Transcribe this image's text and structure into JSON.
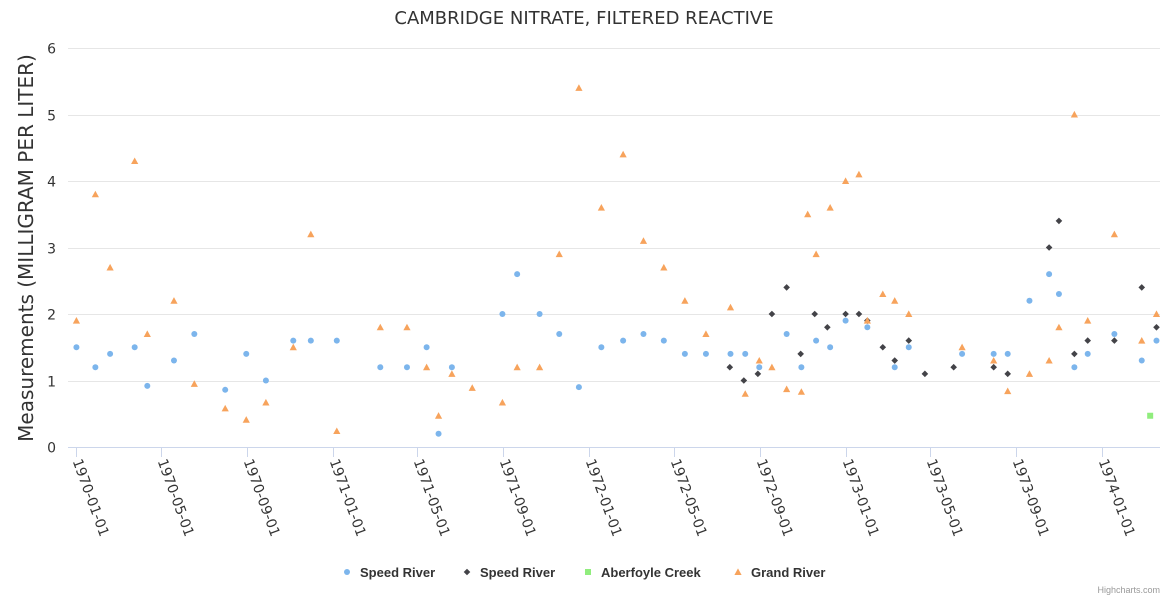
{
  "chart_data": {
    "type": "scatter",
    "title": "CAMBRIDGE NITRATE, FILTERED REACTIVE",
    "xlabel": "",
    "ylabel": "Measurements (MILLIGRAM PER LITER)",
    "ylim": [
      0,
      6
    ],
    "yticks": [
      "0",
      "1",
      "2",
      "3",
      "4",
      "5",
      "6"
    ],
    "xlim": [
      "1969-12-20",
      "1974-03-25"
    ],
    "xticks": [
      "1970-01-01",
      "1970-05-01",
      "1970-09-01",
      "1971-01-01",
      "1971-05-01",
      "1971-09-01",
      "1972-01-01",
      "1972-05-01",
      "1972-09-01",
      "1973-01-01",
      "1973-05-01",
      "1973-09-01",
      "1974-01-01"
    ],
    "grid": true,
    "legend_position": "bottom-center",
    "series": [
      {
        "name": "Speed River",
        "marker": "circle",
        "color": "#7cb5ec",
        "points": [
          [
            "1970-01-01",
            1.5
          ],
          [
            "1970-01-28",
            1.2
          ],
          [
            "1970-02-18",
            1.4
          ],
          [
            "1970-03-25",
            1.5
          ],
          [
            "1970-04-12",
            0.92
          ],
          [
            "1970-05-20",
            1.3
          ],
          [
            "1970-06-18",
            1.7
          ],
          [
            "1970-08-01",
            0.86
          ],
          [
            "1970-08-31",
            1.4
          ],
          [
            "1970-09-28",
            1.0
          ],
          [
            "1970-11-06",
            1.6
          ],
          [
            "1970-12-01",
            1.6
          ],
          [
            "1971-01-07",
            1.6
          ],
          [
            "1971-03-10",
            1.2
          ],
          [
            "1971-04-17",
            1.2
          ],
          [
            "1971-05-15",
            1.5
          ],
          [
            "1971-06-01",
            0.2
          ],
          [
            "1971-06-20",
            1.2
          ],
          [
            "1971-08-31",
            2.0
          ],
          [
            "1971-09-21",
            2.6
          ],
          [
            "1971-10-23",
            2.0
          ],
          [
            "1971-11-20",
            1.7
          ],
          [
            "1971-12-18",
            0.9
          ],
          [
            "1972-01-19",
            1.5
          ],
          [
            "1972-02-19",
            1.6
          ],
          [
            "1972-03-19",
            1.7
          ],
          [
            "1972-04-17",
            1.6
          ],
          [
            "1972-05-17",
            1.4
          ],
          [
            "1972-06-16",
            1.4
          ],
          [
            "1972-07-21",
            1.4
          ],
          [
            "1972-08-11",
            1.4
          ],
          [
            "1972-08-31",
            1.2
          ],
          [
            "1972-10-09",
            1.7
          ],
          [
            "1972-10-30",
            1.2
          ],
          [
            "1972-11-20",
            1.6
          ],
          [
            "1972-12-10",
            1.5
          ],
          [
            "1973-01-01",
            1.9
          ],
          [
            "1973-02-01",
            1.8
          ],
          [
            "1973-03-12",
            1.2
          ],
          [
            "1973-04-01",
            1.5
          ],
          [
            "1973-06-16",
            1.4
          ],
          [
            "1973-07-31",
            1.4
          ],
          [
            "1973-08-20",
            1.4
          ],
          [
            "1973-09-20",
            2.2
          ],
          [
            "1973-10-18",
            2.6
          ],
          [
            "1973-11-01",
            2.3
          ],
          [
            "1973-11-23",
            1.2
          ],
          [
            "1973-12-12",
            1.4
          ],
          [
            "1974-01-19",
            1.7
          ],
          [
            "1974-02-27",
            1.3
          ],
          [
            "1974-03-20",
            1.6
          ]
        ]
      },
      {
        "name": "Speed River",
        "marker": "diamond",
        "color": "#434348",
        "points": [
          [
            "1972-07-20",
            1.2
          ],
          [
            "1972-08-09",
            1.0
          ],
          [
            "1972-08-29",
            1.1
          ],
          [
            "1972-09-18",
            2.0
          ],
          [
            "1972-10-09",
            2.4
          ],
          [
            "1972-10-29",
            1.4
          ],
          [
            "1972-11-18",
            2.0
          ],
          [
            "1972-12-06",
            1.8
          ],
          [
            "1973-01-01",
            2.0
          ],
          [
            "1973-01-20",
            2.0
          ],
          [
            "1973-02-01",
            1.9
          ],
          [
            "1973-02-23",
            1.5
          ],
          [
            "1973-03-12",
            1.3
          ],
          [
            "1973-04-01",
            1.6
          ],
          [
            "1973-04-24",
            1.1
          ],
          [
            "1973-06-04",
            1.2
          ],
          [
            "1973-07-31",
            1.2
          ],
          [
            "1973-08-20",
            1.1
          ],
          [
            "1973-10-18",
            3.0
          ],
          [
            "1973-11-01",
            3.4
          ],
          [
            "1973-11-23",
            1.4
          ],
          [
            "1973-12-12",
            1.6
          ],
          [
            "1974-01-19",
            1.6
          ],
          [
            "1974-02-27",
            2.4
          ],
          [
            "1974-03-20",
            1.8
          ]
        ]
      },
      {
        "name": "Aberfoyle Creek",
        "marker": "square",
        "color": "#90ed7d",
        "points": [
          [
            "1974-03-11",
            0.47
          ]
        ]
      },
      {
        "name": "Grand River",
        "marker": "triangle",
        "color": "#f7a35c",
        "points": [
          [
            "1970-01-01",
            1.9
          ],
          [
            "1970-01-28",
            3.8
          ],
          [
            "1970-02-18",
            2.7
          ],
          [
            "1970-03-25",
            4.3
          ],
          [
            "1970-04-12",
            1.7
          ],
          [
            "1970-05-20",
            2.2
          ],
          [
            "1970-06-18",
            0.95
          ],
          [
            "1970-08-01",
            0.58
          ],
          [
            "1970-08-31",
            0.41
          ],
          [
            "1970-09-28",
            0.67
          ],
          [
            "1970-11-06",
            1.5
          ],
          [
            "1970-12-01",
            3.2
          ],
          [
            "1971-01-07",
            0.24
          ],
          [
            "1971-03-10",
            1.8
          ],
          [
            "1971-04-17",
            1.8
          ],
          [
            "1971-05-15",
            1.2
          ],
          [
            "1971-06-01",
            0.47
          ],
          [
            "1971-06-20",
            1.1
          ],
          [
            "1971-07-19",
            0.89
          ],
          [
            "1971-08-31",
            0.67
          ],
          [
            "1971-09-21",
            1.2
          ],
          [
            "1971-10-23",
            1.2
          ],
          [
            "1971-11-20",
            2.9
          ],
          [
            "1971-12-18",
            5.4
          ],
          [
            "1972-01-19",
            3.6
          ],
          [
            "1972-02-19",
            4.4
          ],
          [
            "1972-03-19",
            3.1
          ],
          [
            "1972-04-17",
            2.7
          ],
          [
            "1972-05-17",
            2.2
          ],
          [
            "1972-06-16",
            1.7
          ],
          [
            "1972-07-21",
            2.1
          ],
          [
            "1972-08-11",
            0.8
          ],
          [
            "1972-08-31",
            1.3
          ],
          [
            "1972-09-18",
            1.2
          ],
          [
            "1972-10-09",
            0.87
          ],
          [
            "1972-10-30",
            0.83
          ],
          [
            "1972-11-08",
            3.5
          ],
          [
            "1972-11-20",
            2.9
          ],
          [
            "1972-12-10",
            3.6
          ],
          [
            "1973-01-01",
            4.0
          ],
          [
            "1973-01-20",
            4.1
          ],
          [
            "1973-02-01",
            1.9
          ],
          [
            "1973-02-23",
            2.3
          ],
          [
            "1973-03-12",
            2.2
          ],
          [
            "1973-04-01",
            2.0
          ],
          [
            "1973-06-16",
            1.5
          ],
          [
            "1973-07-31",
            1.3
          ],
          [
            "1973-08-20",
            0.84
          ],
          [
            "1973-09-20",
            1.1
          ],
          [
            "1973-10-18",
            1.3
          ],
          [
            "1973-11-01",
            1.8
          ],
          [
            "1973-11-23",
            5.0
          ],
          [
            "1973-12-12",
            1.9
          ],
          [
            "1974-01-19",
            3.2
          ],
          [
            "1974-02-27",
            1.6
          ],
          [
            "1974-03-20",
            2.0
          ]
        ]
      }
    ]
  },
  "credits": "Highcharts.com"
}
